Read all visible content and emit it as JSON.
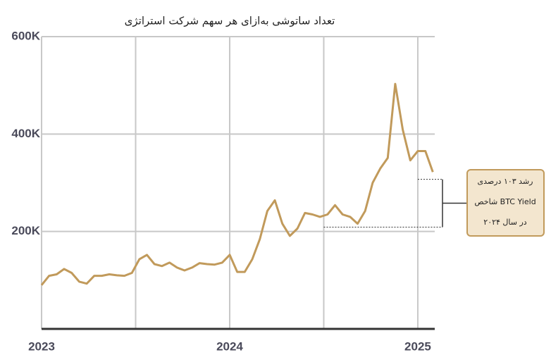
{
  "chart_data": {
    "type": "line",
    "title": "تعداد ساتوشی به‌ازای هر سهم شرکت استراتژی",
    "x": [
      2023.0,
      2023.04,
      2023.08,
      2023.12,
      2023.16,
      2023.2,
      2023.24,
      2023.28,
      2023.32,
      2023.36,
      2023.4,
      2023.44,
      2023.48,
      2023.52,
      2023.56,
      2023.6,
      2023.64,
      2023.68,
      2023.72,
      2023.76,
      2023.8,
      2023.84,
      2023.88,
      2023.92,
      2023.96,
      2024.0,
      2024.04,
      2024.08,
      2024.12,
      2024.16,
      2024.2,
      2024.24,
      2024.28,
      2024.32,
      2024.36,
      2024.4,
      2024.44,
      2024.48,
      2024.52,
      2024.56,
      2024.6,
      2024.64,
      2024.68,
      2024.72,
      2024.76,
      2024.8,
      2024.84,
      2024.88,
      2024.92,
      2024.96,
      2025.0,
      2025.04,
      2025.08
    ],
    "series": [
      {
        "name": "satoshi per share",
        "color": "#c19a5b",
        "values": [
          90000,
          109000,
          112000,
          123000,
          115000,
          97000,
          93000,
          109000,
          109000,
          112000,
          110000,
          109000,
          115000,
          143000,
          152000,
          133000,
          129000,
          136000,
          126000,
          120000,
          126000,
          135000,
          133000,
          132000,
          136000,
          152000,
          117000,
          117000,
          143000,
          184000,
          242000,
          264000,
          216000,
          191000,
          206000,
          238000,
          235000,
          230000,
          235000,
          254000,
          235000,
          230000,
          216000,
          242000,
          300000,
          329000,
          351000,
          503000,
          409000,
          346000,
          365000,
          365000,
          322000
        ]
      }
    ],
    "xlim": [
      2023,
      2025.09
    ],
    "xticks": [
      2023,
      2024,
      2025
    ],
    "x_grid_extra": [
      2023.5,
      2024.5
    ],
    "ylim": [
      0,
      600000
    ],
    "yticks": [
      {
        "value": 200000,
        "label": "200K"
      },
      {
        "value": 400000,
        "label": "400K"
      },
      {
        "value": 600000,
        "label": "600K"
      }
    ],
    "grid": true,
    "annotation": {
      "lines": [
        "رشد ۱۰۳ درصدی",
        "شاخص BTC Yield",
        "در سال ۲۰۲۴"
      ],
      "low": {
        "x": 2024.5,
        "y": 209000
      },
      "high": {
        "x": 2025,
        "y": 307000
      }
    }
  }
}
